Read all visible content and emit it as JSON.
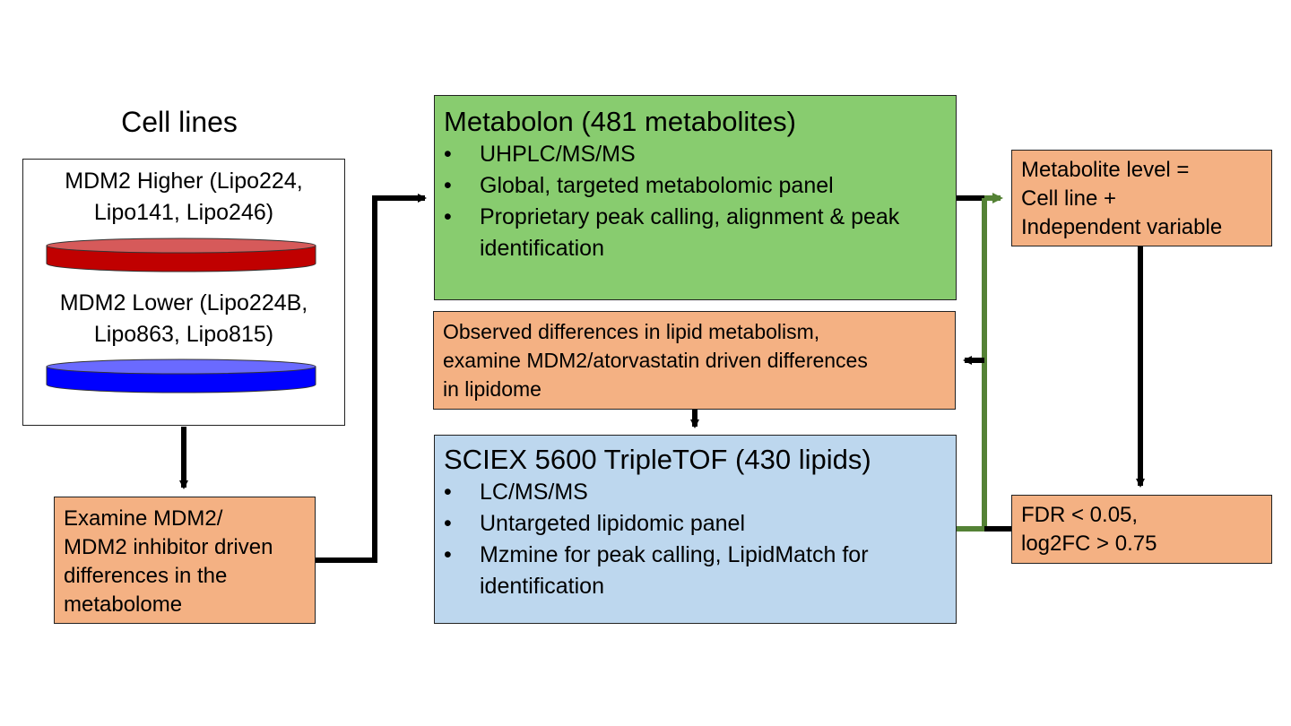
{
  "cell_lines": {
    "title": "Cell lines",
    "higher_label": [
      "MDM2 Higher (Lipo224,",
      "Lipo141, Lipo246)"
    ],
    "lower_label": [
      "MDM2 Lower (Lipo224B,",
      "Lipo863, Lipo815)"
    ],
    "higher_color": "#c00000",
    "lower_color": "#0000ff"
  },
  "examine_box": {
    "lines": [
      "Examine MDM2/",
      "MDM2 inhibitor driven",
      "differences in the",
      "metabolome"
    ]
  },
  "metabolon_box": {
    "title": "Metabolon (481 metabolites)",
    "bullet_symbol": "•",
    "bullets": [
      "UHPLC/MS/MS",
      "Global, targeted metabolomic panel",
      "Proprietary peak calling, alignment & peak identification"
    ]
  },
  "observed_box": {
    "lines": [
      "Observed differences in lipid metabolism,",
      "examine MDM2/atorvastatin driven differences",
      "in lipidome"
    ]
  },
  "sciex_box": {
    "title": "SCIEX 5600 TripleTOF (430 lipids)",
    "bullet_symbol": "•",
    "bullets": [
      "LC/MS/MS",
      "Untargeted lipidomic panel",
      "Mzmine for peak calling, LipidMatch for identification"
    ]
  },
  "metabolite_level_box": {
    "lines": [
      "Metabolite level =",
      "Cell line +",
      "Independent variable"
    ]
  },
  "fdr_box": {
    "lines": [
      "FDR < 0.05,",
      "log2FC > 0.75"
    ]
  },
  "colors": {
    "orange_fill": "#f4b183",
    "green_fill": "#88cc6f",
    "blue_fill": "#bdd7ee",
    "green_connector": "#548235",
    "black_connector": "#000000"
  }
}
